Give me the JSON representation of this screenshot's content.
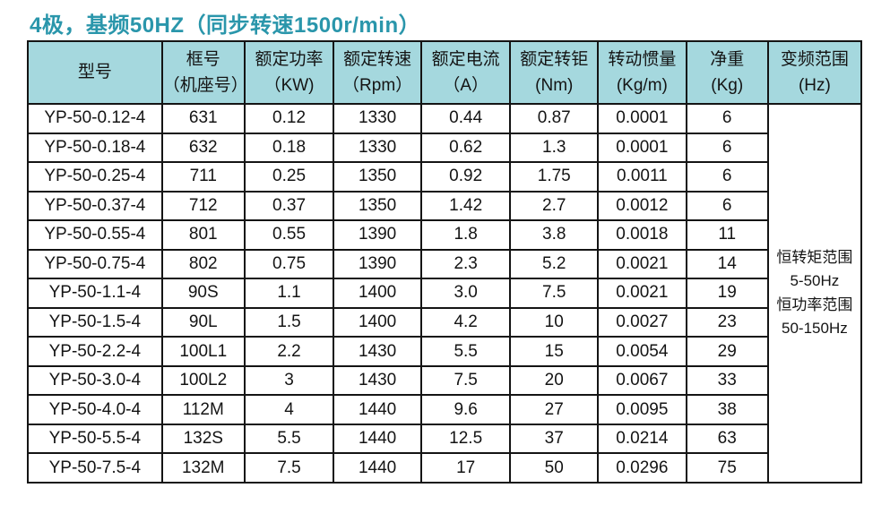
{
  "page": {
    "title": "4极，基频50HZ（同步转速1500r/min）"
  },
  "colors": {
    "title_text": "#2a96ab",
    "header_bg": "#a5d8de",
    "border": "#141414",
    "cell_text": "#141414",
    "page_bg": "#ffffff"
  },
  "table": {
    "columns": [
      {
        "name": "model",
        "line1": "型号",
        "line2": ""
      },
      {
        "name": "frame",
        "line1": "框号",
        "line2": "（机座号）"
      },
      {
        "name": "rated-power",
        "line1": "额定功率",
        "line2": "（KW)"
      },
      {
        "name": "rated-speed",
        "line1": "额定转速",
        "line2": "（Rpm）"
      },
      {
        "name": "rated-current",
        "line1": "额定电流",
        "line2": "（A）"
      },
      {
        "name": "rated-torque",
        "line1": "额定转钜",
        "line2": "(Nm)"
      },
      {
        "name": "moment-of-inertia",
        "line1": "转动惯量",
        "line2": "(Kg/m)"
      },
      {
        "name": "net-weight",
        "line1": "净重",
        "line2": "(Kg)"
      },
      {
        "name": "frequency-range",
        "line1": "变频范围",
        "line2": "(Hz)"
      }
    ],
    "rows": [
      [
        "YP-50-0.12-4",
        "631",
        "0.12",
        "1330",
        "0.44",
        "0.87",
        "0.0001",
        "6"
      ],
      [
        "YP-50-0.18-4",
        "632",
        "0.18",
        "1330",
        "0.62",
        "1.3",
        "0.0001",
        "6"
      ],
      [
        "YP-50-0.25-4",
        "711",
        "0.25",
        "1350",
        "0.92",
        "1.75",
        "0.0011",
        "6"
      ],
      [
        "YP-50-0.37-4",
        "712",
        "0.37",
        "1350",
        "1.42",
        "2.7",
        "0.0012",
        "6"
      ],
      [
        "YP-50-0.55-4",
        "801",
        "0.55",
        "1390",
        "1.8",
        "3.8",
        "0.0018",
        "11"
      ],
      [
        "YP-50-0.75-4",
        "802",
        "0.75",
        "1390",
        "2.3",
        "5.2",
        "0.0021",
        "14"
      ],
      [
        "YP-50-1.1-4",
        "90S",
        "1.1",
        "1400",
        "3.0",
        "7.5",
        "0.0021",
        "19"
      ],
      [
        "YP-50-1.5-4",
        "90L",
        "1.5",
        "1400",
        "4.2",
        "10",
        "0.0027",
        "23"
      ],
      [
        "YP-50-2.2-4",
        "100L1",
        "2.2",
        "1430",
        "5.5",
        "15",
        "0.0054",
        "29"
      ],
      [
        "YP-50-3.0-4",
        "100L2",
        "3",
        "1430",
        "7.5",
        "20",
        "0.0067",
        "33"
      ],
      [
        "YP-50-4.0-4",
        "112M",
        "4",
        "1440",
        "9.6",
        "27",
        "0.0095",
        "38"
      ],
      [
        "YP-50-5.5-4",
        "132S",
        "5.5",
        "1440",
        "12.5",
        "37",
        "0.0214",
        "63"
      ],
      [
        "YP-50-7.5-4",
        "132M",
        "7.5",
        "1440",
        "17",
        "50",
        "0.0296",
        "75"
      ]
    ],
    "frequency_range_note": [
      "恒转矩范围",
      "5-50Hz",
      "恒功率范围",
      "50-150Hz"
    ]
  }
}
